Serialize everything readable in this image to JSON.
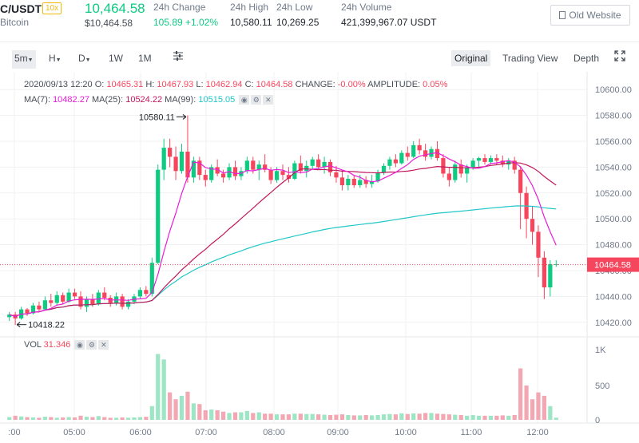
{
  "header": {
    "symbol": "C/USDT",
    "leverage": "10x",
    "coin_name": "Bitcoin",
    "last_price": "10,464.58",
    "last_price_usd": "$10,464.58",
    "stats": [
      {
        "label": "24h Change",
        "value": "105.89 +1.02%"
      },
      {
        "label": "24h High",
        "value": "10,580.11"
      },
      {
        "label": "24h Low",
        "value": "10,269.25"
      },
      {
        "label": "24h Volume",
        "value": "421,399,967.07 USDT"
      }
    ],
    "old_website": "Old Website"
  },
  "toolbar": {
    "intervals": [
      "5m",
      "H",
      "D",
      "1W",
      "1M"
    ],
    "active_interval": "5m",
    "views": [
      "Original",
      "Trading View",
      "Depth"
    ],
    "active_view": "Original"
  },
  "legend": {
    "date": "2020/09/13 12:20",
    "open_label": "O:",
    "open": "10465.31",
    "high_label": "H:",
    "high": "10467.93",
    "low_label": "L:",
    "low": "10462.94",
    "close_label": "C:",
    "close": "10464.58",
    "change_label": "CHANGE:",
    "change": "-0.00%",
    "amp_label": "AMPLITUDE:",
    "amp": "0.05%",
    "ma7_label": "MA(7):",
    "ma7": "10482.27",
    "ma25_label": "MA(25):",
    "ma25": "10524.22",
    "ma99_label": "MA(99):",
    "ma99": "10515.05",
    "vol_label": "VOL",
    "vol": "31.346"
  },
  "colors": {
    "up": "#0ecb81",
    "down": "#f6465d",
    "up_vol": "#9de6c5",
    "down_vol": "#f3a7b2",
    "ma7": "#e81cd7",
    "ma25": "#c2185b",
    "ma99": "#1fc7c7"
  },
  "chart_data": {
    "type": "candlestick",
    "price_ticks": [
      "10600.00",
      "10580.00",
      "10560.00",
      "10540.00",
      "10520.00",
      "10500.00",
      "10480.00",
      "10460.00",
      "10440.00",
      "10420.00"
    ],
    "current_price_tag": "10464.58",
    "high_marker": "10580.11",
    "low_marker": "10418.22",
    "time_ticks": [
      ":00",
      "05:00",
      "06:00",
      "07:00",
      "08:00",
      "09:00",
      "10:00",
      "11:00",
      "12:00"
    ],
    "volume_ticks": [
      "1K",
      "500",
      "0"
    ],
    "ylim": [
      10410,
      10610
    ],
    "vol_ylim": [
      0,
      1000
    ],
    "candles": [
      [
        10424,
        10428,
        10421,
        10426,
        40
      ],
      [
        10426,
        10428,
        10418,
        10423,
        60
      ],
      [
        10423,
        10432,
        10422,
        10430,
        50
      ],
      [
        10430,
        10431,
        10425,
        10427,
        40
      ],
      [
        10427,
        10435,
        10426,
        10433,
        35
      ],
      [
        10433,
        10436,
        10428,
        10430,
        30
      ],
      [
        10430,
        10440,
        10429,
        10437,
        45
      ],
      [
        10437,
        10442,
        10432,
        10435,
        40
      ],
      [
        10435,
        10444,
        10433,
        10441,
        30
      ],
      [
        10441,
        10443,
        10434,
        10436,
        35
      ],
      [
        10436,
        10446,
        10435,
        10443,
        40
      ],
      [
        10443,
        10446,
        10438,
        10440,
        35
      ],
      [
        10440,
        10444,
        10430,
        10432,
        60
      ],
      [
        10432,
        10440,
        10428,
        10438,
        45
      ],
      [
        10438,
        10442,
        10432,
        10434,
        40
      ],
      [
        10434,
        10445,
        10433,
        10443,
        55
      ],
      [
        10443,
        10447,
        10437,
        10439,
        40
      ],
      [
        10439,
        10441,
        10432,
        10435,
        30
      ],
      [
        10435,
        10443,
        10433,
        10440,
        30
      ],
      [
        10440,
        10442,
        10430,
        10432,
        35
      ],
      [
        10432,
        10438,
        10430,
        10436,
        30
      ],
      [
        10436,
        10442,
        10434,
        10440,
        35
      ],
      [
        10440,
        10447,
        10438,
        10445,
        40
      ],
      [
        10445,
        10448,
        10440,
        10442,
        45
      ],
      [
        10442,
        10470,
        10440,
        10466,
        200
      ],
      [
        10466,
        10542,
        10465,
        10538,
        960
      ],
      [
        10538,
        10562,
        10530,
        10555,
        880
      ],
      [
        10555,
        10562,
        10540,
        10548,
        400
      ],
      [
        10548,
        10556,
        10530,
        10537,
        300
      ],
      [
        10537,
        10558,
        10535,
        10552,
        350
      ],
      [
        10552,
        10580,
        10528,
        10532,
        410
      ],
      [
        10532,
        10548,
        10528,
        10545,
        240
      ],
      [
        10545,
        10548,
        10530,
        10534,
        230
      ],
      [
        10534,
        10538,
        10525,
        10530,
        140
      ],
      [
        10530,
        10542,
        10528,
        10540,
        150
      ],
      [
        10540,
        10546,
        10533,
        10535,
        140
      ],
      [
        10535,
        10538,
        10528,
        10532,
        120
      ],
      [
        10532,
        10543,
        10530,
        10540,
        100
      ],
      [
        10540,
        10545,
        10530,
        10533,
        110
      ],
      [
        10533,
        10540,
        10530,
        10537,
        110
      ],
      [
        10537,
        10548,
        10535,
        10545,
        130
      ],
      [
        10545,
        10548,
        10535,
        10538,
        100
      ],
      [
        10538,
        10545,
        10530,
        10542,
        110
      ],
      [
        10542,
        10550,
        10536,
        10538,
        90
      ],
      [
        10538,
        10540,
        10527,
        10530,
        90
      ],
      [
        10530,
        10540,
        10528,
        10537,
        80
      ],
      [
        10537,
        10542,
        10530,
        10534,
        80
      ],
      [
        10534,
        10540,
        10528,
        10531,
        80
      ],
      [
        10531,
        10545,
        10530,
        10543,
        90
      ],
      [
        10543,
        10549,
        10535,
        10537,
        90
      ],
      [
        10537,
        10545,
        10532,
        10541,
        85
      ],
      [
        10541,
        10548,
        10538,
        10546,
        85
      ],
      [
        10546,
        10550,
        10538,
        10540,
        80
      ],
      [
        10540,
        10548,
        10535,
        10544,
        75
      ],
      [
        10544,
        10546,
        10533,
        10536,
        70
      ],
      [
        10536,
        10541,
        10528,
        10532,
        75
      ],
      [
        10532,
        10538,
        10522,
        10526,
        80
      ],
      [
        10526,
        10534,
        10522,
        10531,
        70
      ],
      [
        10531,
        10534,
        10524,
        10526,
        65
      ],
      [
        10526,
        10534,
        10524,
        10530,
        65
      ],
      [
        10530,
        10533,
        10524,
        10527,
        70
      ],
      [
        10527,
        10534,
        10524,
        10529,
        65
      ],
      [
        10529,
        10538,
        10528,
        10536,
        70
      ],
      [
        10536,
        10543,
        10534,
        10541,
        80
      ],
      [
        10541,
        10548,
        10538,
        10546,
        85
      ],
      [
        10546,
        10550,
        10540,
        10543,
        80
      ],
      [
        10543,
        10553,
        10542,
        10551,
        95
      ],
      [
        10551,
        10556,
        10545,
        10548,
        85
      ],
      [
        10548,
        10560,
        10547,
        10557,
        95
      ],
      [
        10557,
        10562,
        10550,
        10553,
        90
      ],
      [
        10553,
        10558,
        10545,
        10548,
        100
      ],
      [
        10548,
        10556,
        10546,
        10554,
        100
      ],
      [
        10554,
        10560,
        10545,
        10547,
        90
      ],
      [
        10547,
        10550,
        10532,
        10535,
        85
      ],
      [
        10535,
        10540,
        10525,
        10530,
        80
      ],
      [
        10530,
        10545,
        10528,
        10542,
        75
      ],
      [
        10542,
        10546,
        10532,
        10535,
        70
      ],
      [
        10535,
        10542,
        10528,
        10540,
        60
      ],
      [
        10540,
        10547,
        10538,
        10545,
        70
      ],
      [
        10545,
        10548,
        10540,
        10547,
        60
      ],
      [
        10547,
        10550,
        10542,
        10544,
        60
      ],
      [
        10544,
        10549,
        10542,
        10547,
        60
      ],
      [
        10547,
        10550,
        10542,
        10545,
        60
      ],
      [
        10545,
        10549,
        10540,
        10542,
        65
      ],
      [
        10542,
        10547,
        10538,
        10545,
        60
      ],
      [
        10545,
        10548,
        10535,
        10538,
        70
      ],
      [
        10538,
        10541,
        10492,
        10520,
        750
      ],
      [
        10520,
        10525,
        10485,
        10500,
        500
      ],
      [
        10500,
        10510,
        10480,
        10490,
        300
      ],
      [
        10490,
        10495,
        10455,
        10470,
        400
      ],
      [
        10470,
        10475,
        10438,
        10447,
        350
      ],
      [
        10447,
        10468,
        10440,
        10465,
        200
      ],
      [
        10465,
        10468,
        10463,
        10465,
        31
      ]
    ]
  }
}
